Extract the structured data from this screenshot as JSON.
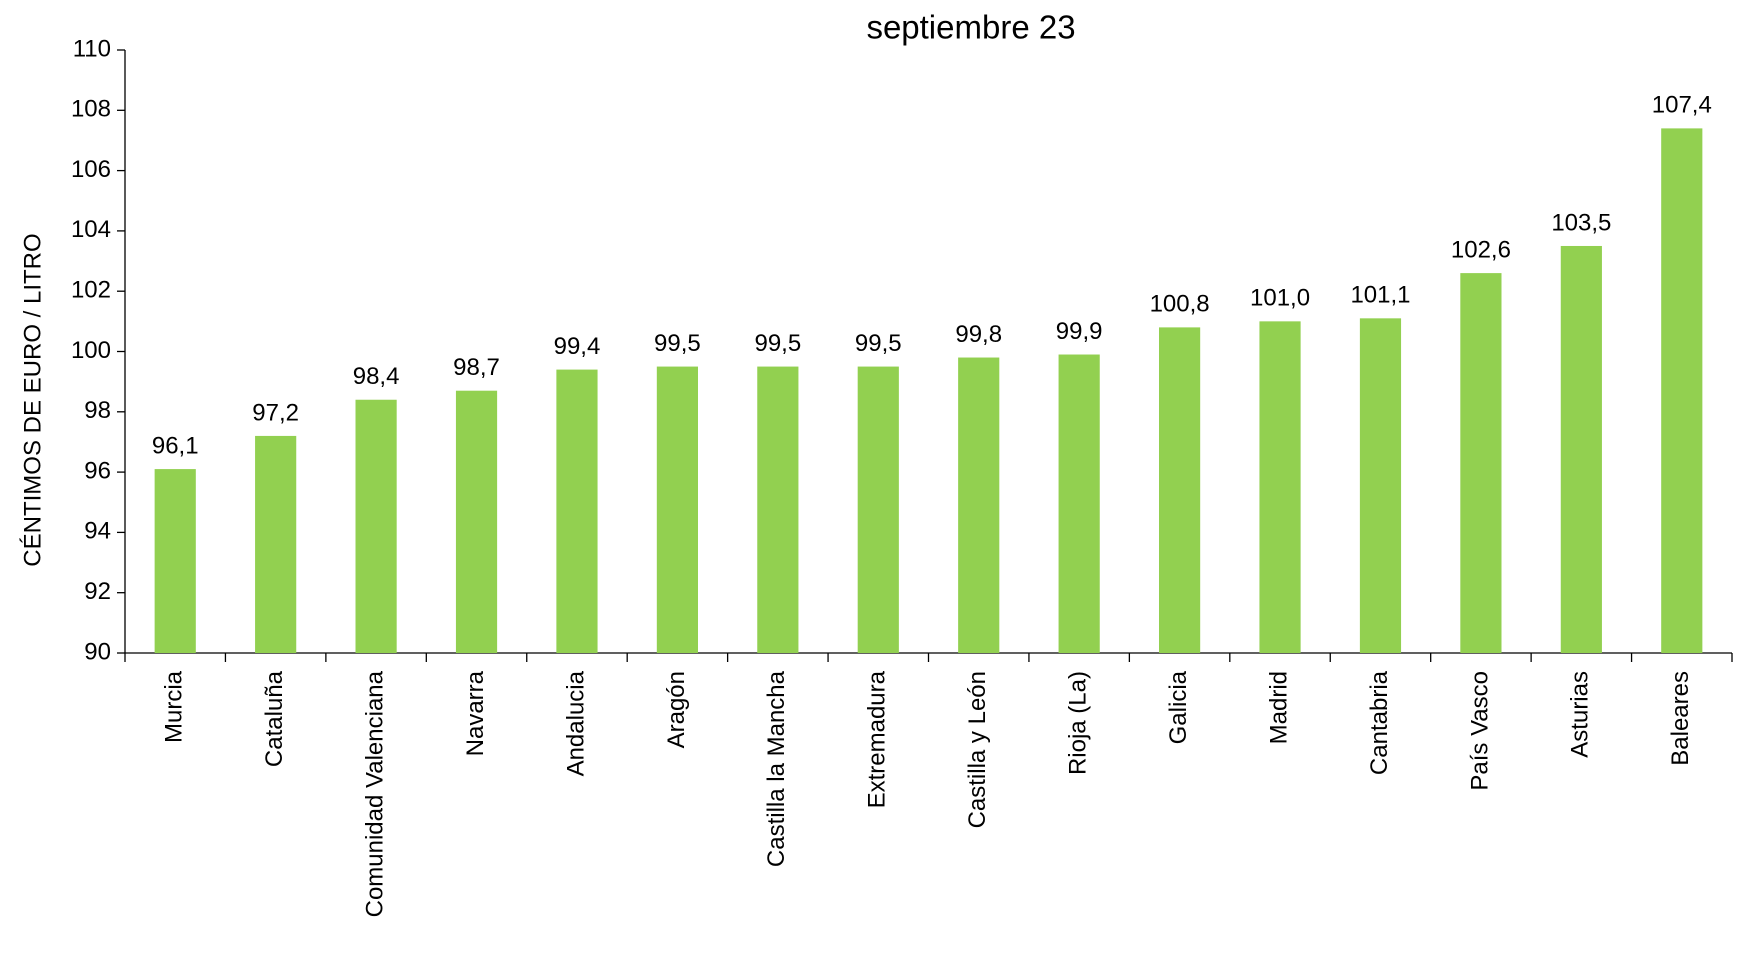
{
  "chart_data": {
    "type": "bar",
    "title": "septiembre 23",
    "y_axis_label": "CÉNTIMOS DE EURO / LITRO",
    "categories": [
      "Murcia",
      "Cataluña",
      "Comunidad Valenciana",
      "Navarra",
      "Andalucia",
      "Aragón",
      "Castilla la Mancha",
      "Extremadura",
      "Castilla y León",
      "Rioja (La)",
      "Galicia",
      "Madrid",
      "Cantabria",
      "País Vasco",
      "Asturias",
      "Baleares"
    ],
    "values": [
      96.1,
      97.2,
      98.4,
      98.7,
      99.4,
      99.5,
      99.5,
      99.5,
      99.8,
      99.9,
      100.8,
      101.0,
      101.1,
      102.6,
      103.5,
      107.4
    ],
    "value_labels": [
      "96,1",
      "97,2",
      "98,4",
      "98,7",
      "99,4",
      "99,5",
      "99,5",
      "99,5",
      "99,8",
      "99,9",
      "100,8",
      "101,0",
      "101,1",
      "102,6",
      "103,5",
      "107,4"
    ],
    "color": "#92d050",
    "ylim": [
      90,
      110
    ],
    "yticks": [
      90,
      92,
      94,
      96,
      98,
      100,
      102,
      104,
      106,
      108,
      110
    ],
    "grid": false
  }
}
